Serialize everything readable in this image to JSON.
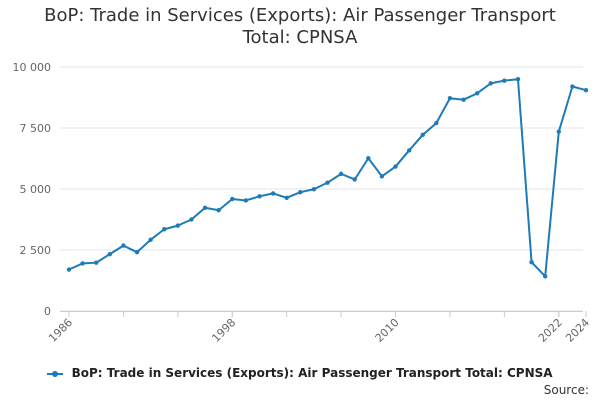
{
  "page": {
    "title_line1": "BoP: Trade in Services (Exports): Air Passenger Transport",
    "title_line2": "Total: CPNSA",
    "source_label": "Source:"
  },
  "colors": {
    "series": "#1f7ab8",
    "grid": "#e6e6e6",
    "axis_text": "#666666"
  },
  "chart_data": {
    "type": "line",
    "title": "BoP: Trade in Services (Exports): Air Passenger Transport Total: CPNSA",
    "xlabel": "",
    "ylabel": "",
    "xlim": [
      1986,
      2024
    ],
    "ylim": [
      0,
      10000
    ],
    "grid": true,
    "legend_position": "bottom",
    "y_ticks": [
      0,
      2500,
      5000,
      7500,
      10000
    ],
    "y_tick_labels": [
      "0",
      "2 500",
      "5 000",
      "7 500",
      "10 000"
    ],
    "x_tick_labels": [
      "1986",
      "1998",
      "2010",
      "2022",
      "2024"
    ],
    "x": [
      1986,
      1987,
      1988,
      1989,
      1990,
      1991,
      1992,
      1993,
      1994,
      1995,
      1996,
      1997,
      1998,
      1999,
      2000,
      2001,
      2002,
      2003,
      2004,
      2005,
      2006,
      2007,
      2008,
      2009,
      2010,
      2011,
      2012,
      2013,
      2014,
      2015,
      2016,
      2017,
      2018,
      2019,
      2020,
      2021,
      2022,
      2023,
      2024
    ],
    "series": [
      {
        "name": "BoP: Trade in Services (Exports): Air Passenger Transport Total: CPNSA",
        "values": [
          1700,
          1950,
          1980,
          2330,
          2680,
          2410,
          2920,
          3350,
          3500,
          3750,
          4230,
          4130,
          4590,
          4530,
          4700,
          4820,
          4640,
          4870,
          4990,
          5260,
          5620,
          5390,
          6260,
          5520,
          5920,
          6580,
          7220,
          7700,
          8720,
          8660,
          8920,
          9330,
          9440,
          9500,
          2000,
          1420,
          7350,
          9200,
          9050
        ]
      }
    ]
  }
}
